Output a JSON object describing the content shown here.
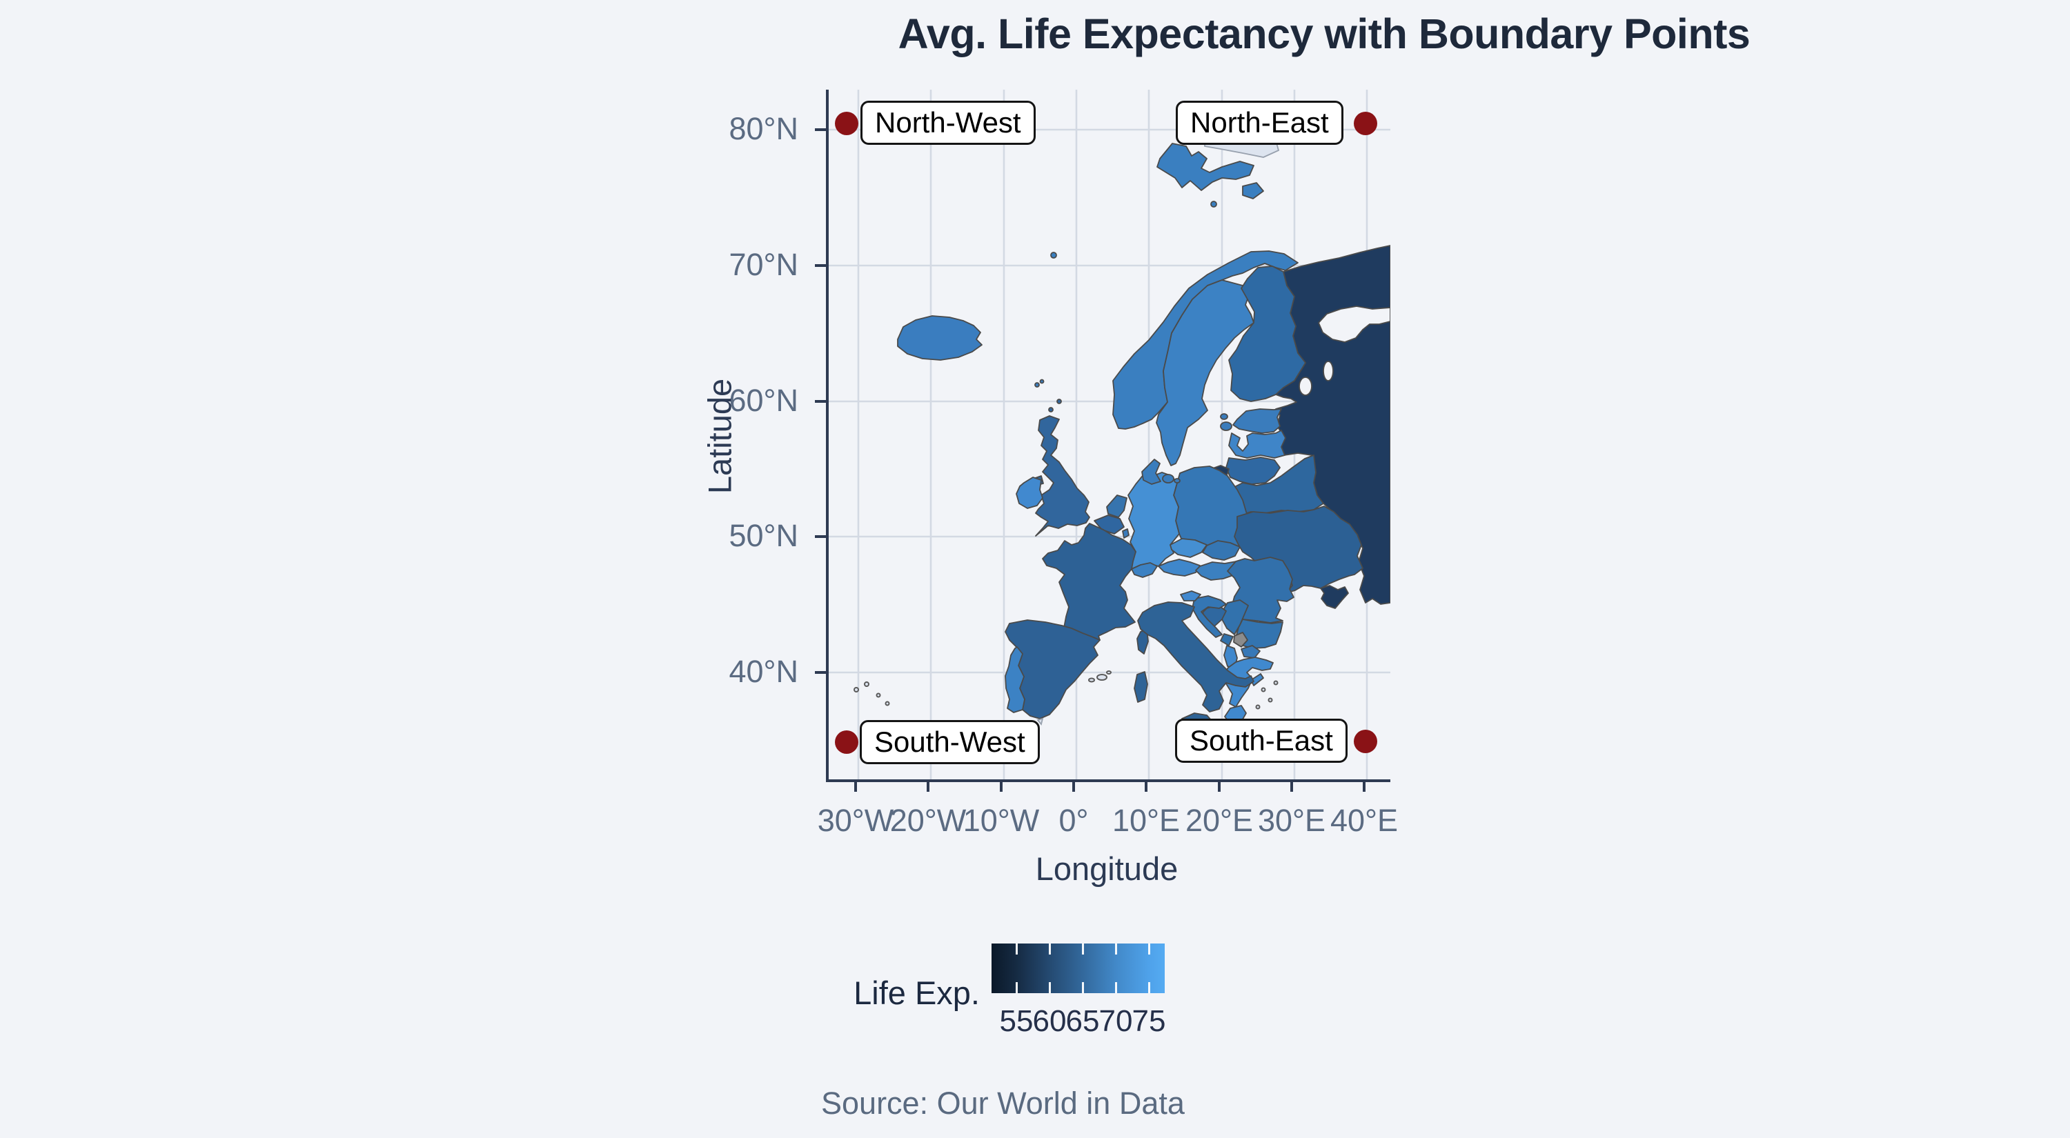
{
  "page": {
    "background": "#f2f4f8"
  },
  "chart_data": {
    "type": "choropleth_map",
    "title": "Avg. Life Expectancy with Boundary Points",
    "xlabel": "Longitude",
    "ylabel": "Latitude",
    "x_ticks": [
      "30°W",
      "20°W",
      "10°W",
      "0°",
      "10°E",
      "20°E",
      "30°E",
      "40°E"
    ],
    "y_ticks": [
      "80°N",
      "70°N",
      "60°N",
      "50°N",
      "40°N"
    ],
    "lon_range": [
      -34,
      43
    ],
    "lat_range": [
      32,
      83
    ],
    "grid": true,
    "legend": {
      "title": "Life Exp.",
      "tick_labels": [
        "55",
        "60",
        "65",
        "70",
        "75"
      ],
      "value_ticks": [
        55,
        60,
        65,
        70,
        75
      ],
      "gradient": [
        "#0b1929",
        "#152a42",
        "#244970",
        "#33699d",
        "#4289c9",
        "#4fa2ea",
        "#55abf2"
      ],
      "position": "bottom"
    },
    "boundary_points": [
      {
        "label": "North-West",
        "lon": -31,
        "lat": 80.5
      },
      {
        "label": "North-East",
        "lon": 40,
        "lat": 80.5
      },
      {
        "label": "South-West",
        "lon": -31,
        "lat": 35
      },
      {
        "label": "South-East",
        "lon": 40,
        "lat": 35
      }
    ],
    "point_color": "#8a1216",
    "source": "Source: Our World in Data",
    "region_colors": {
      "russia": "#1f3b5f",
      "ukraine": "#2c6094",
      "belarus": "#2e679e",
      "moldova": "#2e6598",
      "estonia": "#3a7cbc",
      "latvia": "#3f85c8",
      "lithuania": "#2f68a2",
      "kaliningrad": "#1f3b5f",
      "finland": "#2e6aa4",
      "sweden": "#3c82c4",
      "norway": "#3a7fc0",
      "denmark": "#3a7dbd",
      "iceland": "#3a7dbf",
      "poland": "#3577b5",
      "germany": "#4590d4",
      "netherlands": "#3674ae",
      "belgium": "#2f66a0",
      "luxembourg": "#3a7cbc",
      "czechia": "#458fd2",
      "slovakia": "#3576b3",
      "austria": "#3f87cb",
      "switzerland": "#3b81c3",
      "hungary": "#3b80c0",
      "france": "#2d6195",
      "spain": "#2e6195",
      "portugal": "#3c82c4",
      "italy": "#2e6396",
      "uk": "#31669d",
      "ireland": "#4189cf",
      "slovenia": "#4289cf",
      "croatia": "#3476b4",
      "bosnia": "#2f68a0",
      "serbia": "#3272ad",
      "montenegro": "#3171ab",
      "kosovo": "#8c8c8c",
      "north_macedonia": "#3778b7",
      "albania": "#3f87cc",
      "greece": "#4089ce",
      "romania": "#3270ab",
      "bulgaria": "#3374b0",
      "no_data": "#dde4ef",
      "sea": "#f2f4f8"
    }
  }
}
